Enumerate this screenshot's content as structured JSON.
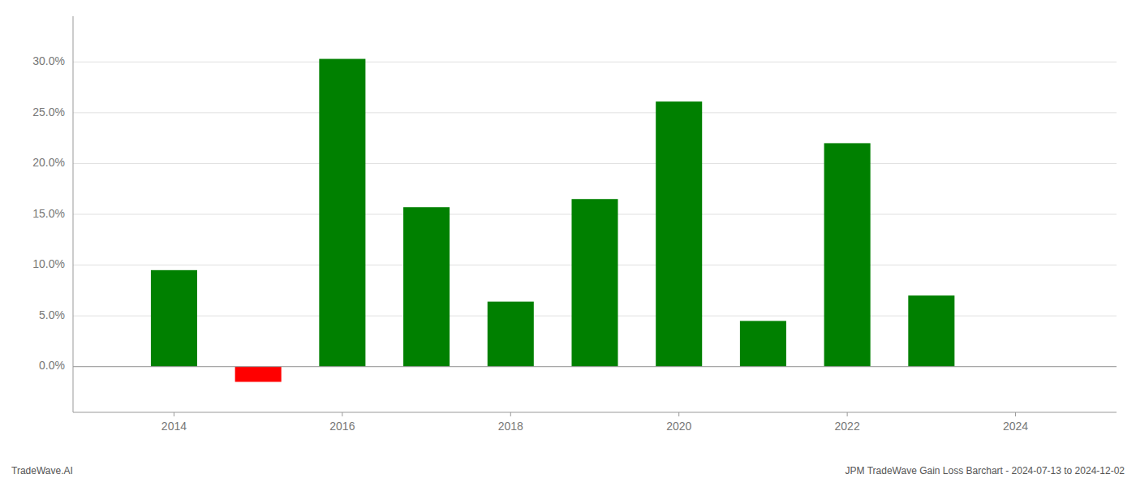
{
  "chart_data": {
    "type": "bar",
    "x": [
      2014,
      2015,
      2016,
      2017,
      2018,
      2019,
      2020,
      2021,
      2022,
      2023
    ],
    "values": [
      0.095,
      -0.015,
      0.303,
      0.157,
      0.064,
      0.165,
      0.261,
      0.045,
      0.22,
      0.07
    ],
    "colors": [
      "#008000",
      "#ff0000",
      "#008000",
      "#008000",
      "#008000",
      "#008000",
      "#008000",
      "#008000",
      "#008000",
      "#008000"
    ],
    "xlim": [
      2012.8,
      2025.2
    ],
    "ylim": [
      -0.045,
      0.345
    ],
    "xticks": [
      2014,
      2016,
      2018,
      2020,
      2022,
      2024
    ],
    "yticks": [
      {
        "value": 0.0,
        "label": "0.0%"
      },
      {
        "value": 0.05,
        "label": "5.0%"
      },
      {
        "value": 0.1,
        "label": "10.0%"
      },
      {
        "value": 0.15,
        "label": "15.0%"
      },
      {
        "value": 0.2,
        "label": "20.0%"
      },
      {
        "value": 0.25,
        "label": "25.0%"
      },
      {
        "value": 0.3,
        "label": "30.0%"
      }
    ],
    "grid": true,
    "annotations": [
      "TradeWave.AI",
      "JPM TradeWave Gain Loss Barchart - 2024-07-13 to 2024-12-02"
    ]
  }
}
